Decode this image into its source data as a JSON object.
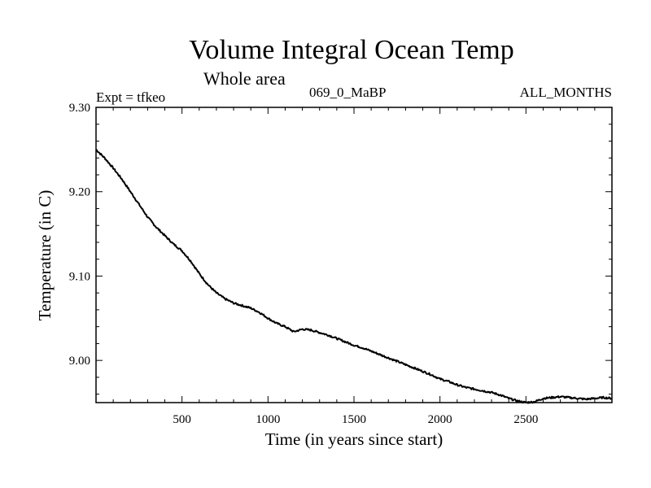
{
  "chart_data": {
    "type": "line",
    "title": "Volume Integral Ocean Temp",
    "subtitle": "Whole area",
    "annotations": {
      "left": "Expt = tfkeo",
      "center": "069_0_MaBP",
      "right": "ALL_MONTHS"
    },
    "xlabel": "Time (in years since start)",
    "ylabel": "Temperature (in C)",
    "xlim": [
      0,
      3000
    ],
    "ylim": [
      8.95,
      9.3
    ],
    "x_ticks": [
      500,
      1000,
      1500,
      2000,
      2500
    ],
    "x_tick_labels": [
      "500",
      "1000",
      "1500",
      "2000",
      "2500"
    ],
    "y_ticks": [
      9.0,
      9.1,
      9.2,
      9.3
    ],
    "y_tick_labels": [
      "9.00",
      "9.10",
      "9.20",
      "9.30"
    ],
    "grid": false,
    "series": [
      {
        "x": [
          0,
          50,
          100,
          150,
          200,
          250,
          300,
          350,
          400,
          450,
          500,
          550,
          600,
          650,
          700,
          750,
          800,
          850,
          900,
          950,
          1000,
          1050,
          1100,
          1150,
          1200,
          1250,
          1300,
          1350,
          1400,
          1450,
          1500,
          1550,
          1600,
          1650,
          1700,
          1750,
          1800,
          1850,
          1900,
          1950,
          2000,
          2050,
          2100,
          2150,
          2200,
          2250,
          2300,
          2350,
          2400,
          2450,
          2500,
          2550,
          2600,
          2650,
          2700,
          2750,
          2800,
          2850,
          2900,
          2950,
          3000
        ],
        "y": [
          9.25,
          9.24,
          9.228,
          9.215,
          9.2,
          9.185,
          9.17,
          9.158,
          9.148,
          9.138,
          9.13,
          9.118,
          9.103,
          9.09,
          9.08,
          9.073,
          9.068,
          9.065,
          9.062,
          9.057,
          9.05,
          9.044,
          9.04,
          9.034,
          9.037,
          9.036,
          9.033,
          9.03,
          9.026,
          9.022,
          9.018,
          9.015,
          9.011,
          9.007,
          9.003,
          8.999,
          8.995,
          8.991,
          8.987,
          8.983,
          8.978,
          8.975,
          8.971,
          8.968,
          8.966,
          8.964,
          8.962,
          8.959,
          8.955,
          8.952,
          8.95,
          8.951,
          8.955,
          8.956,
          8.957,
          8.956,
          8.955,
          8.954,
          8.955,
          8.956,
          8.955
        ]
      }
    ],
    "line_color": "#000000"
  }
}
